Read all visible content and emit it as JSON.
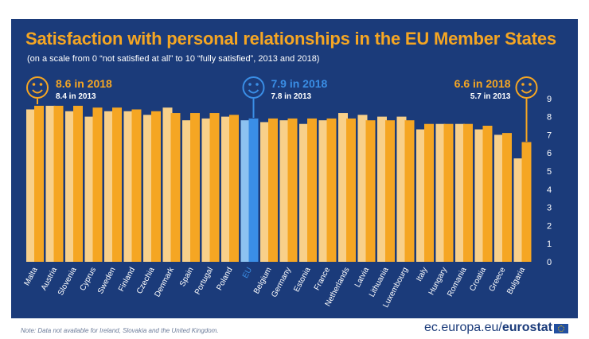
{
  "title": "Satisfaction with personal relationships in the EU Member States",
  "subtitle": "(on a scale from 0 “not satisfied at all” to 10 “fully satisfied”, 2013 and 2018)",
  "note": "Note: Data not available for Ireland, Slovakia and the United Kingdom.",
  "source_prefix": "ec.europa.eu/",
  "source_brand": "eurostat",
  "colors": {
    "background": "#1b3b7a",
    "bar_2018": "#f5a623",
    "bar_2013": "#f8d08a",
    "eu_2018": "#3a8ee6",
    "eu_2013": "#8dc2f0",
    "title": "#f5a623"
  },
  "icons": [
    "smiley-icon",
    "eu-flag-icon"
  ],
  "callouts": [
    {
      "name": "callout-max",
      "country": "Malta",
      "line1": "8.6 in 2018",
      "line2": "8.4 in 2013",
      "icon": "smiley-icon",
      "color": "#f5a623"
    },
    {
      "name": "callout-eu",
      "country": "EU",
      "line1": "7.9 in 2018",
      "line2": "7.8 in 2013",
      "icon": "smiley-icon",
      "color": "#3a8ee6"
    },
    {
      "name": "callout-min",
      "country": "Bulgaria",
      "line1": "6.6 in 2018",
      "line2": "5.7 in 2013",
      "icon": "smiley-icon",
      "color": "#f5a623"
    }
  ],
  "chart_data": {
    "type": "bar",
    "categories": [
      "Malta",
      "Austria",
      "Slovenia",
      "Cyprus",
      "Sweden",
      "Finland",
      "Czechia",
      "Denmark",
      "Spain",
      "Portugal",
      "Poland",
      "EU",
      "Belgium",
      "Germany",
      "Estonia",
      "France",
      "Netherlands",
      "Latvia",
      "Lithuania",
      "Luxembourg",
      "Italy",
      "Hungary",
      "Romania",
      "Croatia",
      "Greece",
      "Bulgaria"
    ],
    "series": [
      {
        "name": "2013",
        "values": [
          8.4,
          8.6,
          8.3,
          8.0,
          8.3,
          8.3,
          8.1,
          8.5,
          7.8,
          7.9,
          8.0,
          7.8,
          7.7,
          7.8,
          7.6,
          7.8,
          8.2,
          8.1,
          8.0,
          8.0,
          7.3,
          7.6,
          7.6,
          7.3,
          7.0,
          5.7
        ]
      },
      {
        "name": "2018",
        "values": [
          8.6,
          8.6,
          8.6,
          8.5,
          8.5,
          8.4,
          8.3,
          8.2,
          8.2,
          8.2,
          8.1,
          7.9,
          7.9,
          7.9,
          7.9,
          7.9,
          7.9,
          7.8,
          7.8,
          7.8,
          7.6,
          7.6,
          7.6,
          7.5,
          7.1,
          6.6
        ]
      }
    ],
    "highlight": "EU",
    "yticks": [
      0,
      1,
      2,
      3,
      4,
      5,
      6,
      7,
      8,
      9
    ],
    "ylim": [
      0,
      9
    ],
    "grid": false,
    "y_axis_position": "right"
  }
}
